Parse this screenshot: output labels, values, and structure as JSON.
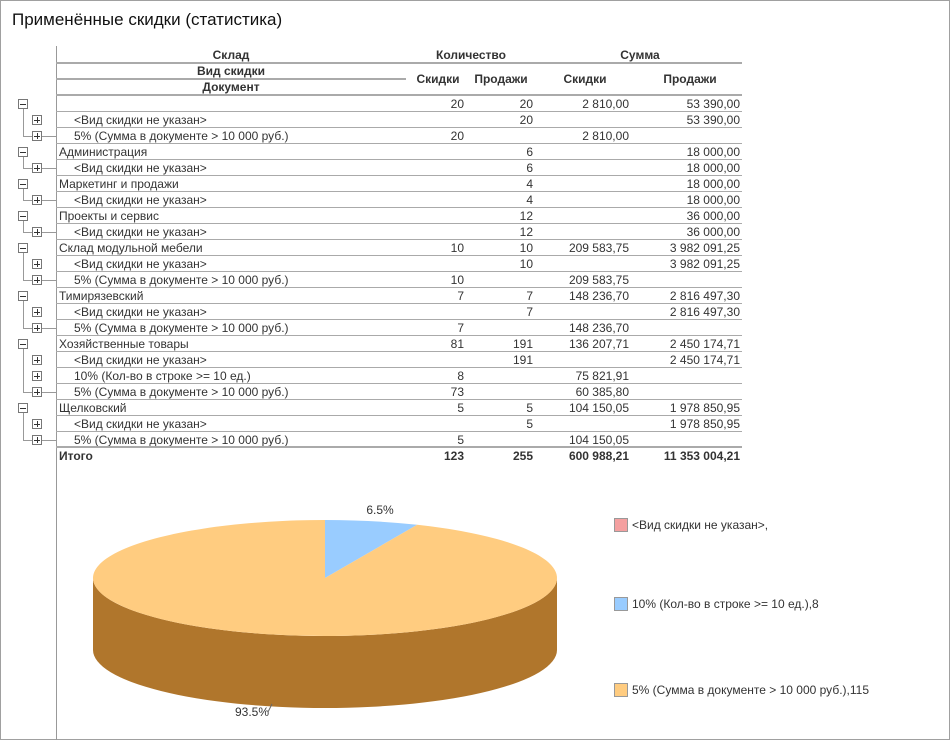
{
  "title": "Применённые скидки (статистика)",
  "headers": {
    "group1": "Склад",
    "group2": "Вид скидки",
    "group3": "Документ",
    "qty": "Количество",
    "sum": "Сумма",
    "qty_discounts": "Скидки",
    "qty_sales": "Продажи",
    "sum_discounts": "Скидки",
    "sum_sales": "Продажи"
  },
  "rows": [
    {
      "level": 0,
      "label": "",
      "qd": "20",
      "qs": "20",
      "sd": "2 810,00",
      "ss": "53 390,00"
    },
    {
      "level": 1,
      "label": "<Вид скидки не указан>",
      "qd": "",
      "qs": "20",
      "sd": "",
      "ss": "53 390,00"
    },
    {
      "level": 1,
      "label": "5% (Сумма в документе > 10 000 руб.)",
      "qd": "20",
      "qs": "",
      "sd": "2 810,00",
      "ss": ""
    },
    {
      "level": 0,
      "label": "Администрация",
      "qd": "",
      "qs": "6",
      "sd": "",
      "ss": "18 000,00"
    },
    {
      "level": 1,
      "label": "<Вид скидки не указан>",
      "qd": "",
      "qs": "6",
      "sd": "",
      "ss": "18 000,00"
    },
    {
      "level": 0,
      "label": "Маркетинг и продажи",
      "qd": "",
      "qs": "4",
      "sd": "",
      "ss": "18 000,00"
    },
    {
      "level": 1,
      "label": "<Вид скидки не указан>",
      "qd": "",
      "qs": "4",
      "sd": "",
      "ss": "18 000,00"
    },
    {
      "level": 0,
      "label": "Проекты и сервис",
      "qd": "",
      "qs": "12",
      "sd": "",
      "ss": "36 000,00"
    },
    {
      "level": 1,
      "label": "<Вид скидки не указан>",
      "qd": "",
      "qs": "12",
      "sd": "",
      "ss": "36 000,00"
    },
    {
      "level": 0,
      "label": "Склад модульной мебели",
      "qd": "10",
      "qs": "10",
      "sd": "209 583,75",
      "ss": "3 982 091,25"
    },
    {
      "level": 1,
      "label": "<Вид скидки не указан>",
      "qd": "",
      "qs": "10",
      "sd": "",
      "ss": "3 982 091,25"
    },
    {
      "level": 1,
      "label": "5% (Сумма в документе > 10 000 руб.)",
      "qd": "10",
      "qs": "",
      "sd": "209 583,75",
      "ss": ""
    },
    {
      "level": 0,
      "label": "Тимирязевский",
      "qd": "7",
      "qs": "7",
      "sd": "148 236,70",
      "ss": "2 816 497,30"
    },
    {
      "level": 1,
      "label": "<Вид скидки не указан>",
      "qd": "",
      "qs": "7",
      "sd": "",
      "ss": "2 816 497,30"
    },
    {
      "level": 1,
      "label": "5% (Сумма в документе > 10 000 руб.)",
      "qd": "7",
      "qs": "",
      "sd": "148 236,70",
      "ss": ""
    },
    {
      "level": 0,
      "label": "Хозяйственные товары",
      "qd": "81",
      "qs": "191",
      "sd": "136 207,71",
      "ss": "2 450 174,71"
    },
    {
      "level": 1,
      "label": "<Вид скидки не указан>",
      "qd": "",
      "qs": "191",
      "sd": "",
      "ss": "2 450 174,71"
    },
    {
      "level": 1,
      "label": "10% (Кол-во в строке >= 10 ед.)",
      "qd": "8",
      "qs": "",
      "sd": "75 821,91",
      "ss": ""
    },
    {
      "level": 1,
      "label": "5% (Сумма в документе > 10 000 руб.)",
      "qd": "73",
      "qs": "",
      "sd": "60 385,80",
      "ss": ""
    },
    {
      "level": 0,
      "label": "Щелковский",
      "qd": "5",
      "qs": "5",
      "sd": "104 150,05",
      "ss": "1 978 850,95"
    },
    {
      "level": 1,
      "label": "<Вид скидки не указан>",
      "qd": "",
      "qs": "5",
      "sd": "",
      "ss": "1 978 850,95"
    },
    {
      "level": 1,
      "label": "5% (Сумма в документе > 10 000 руб.)",
      "qd": "5",
      "qs": "",
      "sd": "104 150,05",
      "ss": ""
    }
  ],
  "total": {
    "label": "Итого",
    "qd": "123",
    "qs": "255",
    "sd": "600 988,21",
    "ss": "11 353 004,21"
  },
  "chart_data": {
    "type": "pie",
    "style": "3d",
    "slices": [
      {
        "label": "<Вид скидки не указан>,",
        "value": 0,
        "color": "#f4a0a0"
      },
      {
        "label": "10% (Кол-во в строке >= 10 ед.),8",
        "value": 8,
        "color": "#99ccff"
      },
      {
        "label": "5% (Сумма в документе > 10 000 руб.),115",
        "value": 115,
        "color": "#ffcc80"
      }
    ],
    "data_labels": [
      "6.5%",
      "93.5%"
    ],
    "legend_position": "right"
  }
}
